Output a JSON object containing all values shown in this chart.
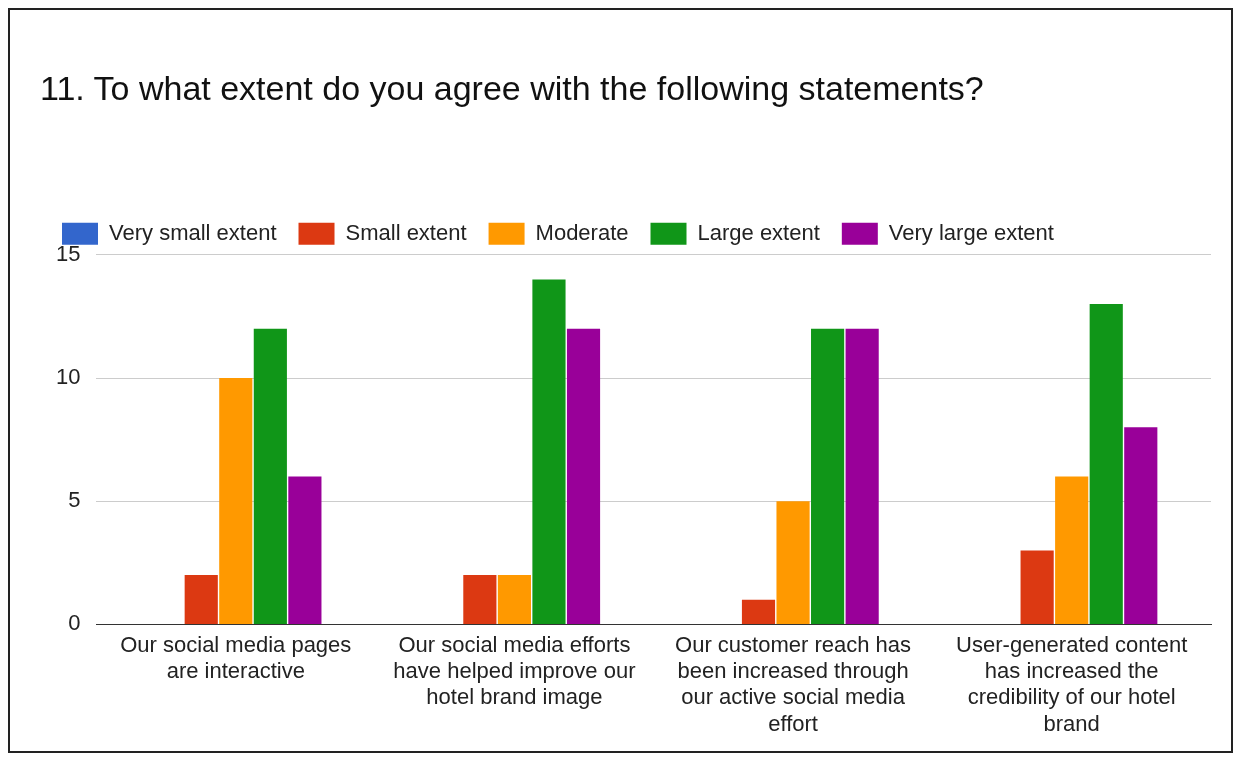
{
  "chart_data": {
    "type": "bar",
    "title": "11. To what extent do you agree with the following statements?",
    "categories": [
      "Our social media pages are interactive",
      "Our social media efforts have helped improve our hotel brand image",
      "Our customer reach has been increased through our active social media effort",
      "User-generated content has increased the credibility of our hotel brand"
    ],
    "series": [
      {
        "name": "Very small extent",
        "color": "#3366cc",
        "values": [
          0,
          0,
          0,
          0
        ]
      },
      {
        "name": "Small extent",
        "color": "#dc3912",
        "values": [
          2,
          2,
          1,
          3
        ]
      },
      {
        "name": "Moderate",
        "color": "#ff9900",
        "values": [
          10,
          2,
          5,
          6
        ]
      },
      {
        "name": "Large extent",
        "color": "#109618",
        "values": [
          12,
          14,
          12,
          13
        ]
      },
      {
        "name": "Very large extent",
        "color": "#990099",
        "values": [
          6,
          12,
          12,
          8
        ]
      }
    ],
    "ylim": [
      0,
      15
    ],
    "yticks": [
      0,
      5,
      10,
      15
    ],
    "grid": "y",
    "legend": "top left"
  }
}
